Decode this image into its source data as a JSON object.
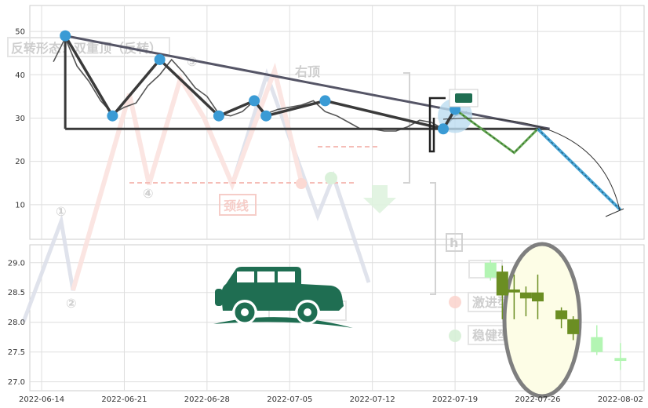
{
  "chart_data": [
    {
      "type": "line",
      "panel": "top",
      "ylim": [
        2,
        56
      ],
      "yticks": [
        10,
        20,
        30,
        40,
        50
      ],
      "colors": {
        "price": "#555555",
        "pattern": "#3a3a3a",
        "pivot": "#3a9bd5",
        "trend": "#555566",
        "projection_up": "#66aa55",
        "projection_down": "#4aa8d8"
      },
      "price_series": [
        [
          "2022-06-15",
          43.0
        ],
        [
          "2022-06-16",
          48.5
        ],
        [
          "2022-06-17",
          42.0
        ],
        [
          "2022-06-18",
          38.5
        ],
        [
          "2022-06-19",
          34.0
        ],
        [
          "2022-06-20",
          31.0
        ],
        [
          "2022-06-21",
          32.5
        ],
        [
          "2022-06-22",
          33.5
        ],
        [
          "2022-06-23",
          37.5
        ],
        [
          "2022-06-24",
          40.0
        ],
        [
          "2022-06-25",
          43.5
        ],
        [
          "2022-06-26",
          40.5
        ],
        [
          "2022-06-27",
          37.0
        ],
        [
          "2022-06-28",
          35.0
        ],
        [
          "2022-06-29",
          31.0
        ],
        [
          "2022-06-30",
          30.5
        ],
        [
          "2022-07-01",
          31.5
        ],
        [
          "2022-07-02",
          34.0
        ],
        [
          "2022-07-03",
          31.0
        ],
        [
          "2022-07-04",
          32.0
        ],
        [
          "2022-07-05",
          32.5
        ],
        [
          "2022-07-06",
          33.0
        ],
        [
          "2022-07-07",
          34.0
        ],
        [
          "2022-07-08",
          31.5
        ],
        [
          "2022-07-09",
          30.5
        ],
        [
          "2022-07-10",
          29.0
        ],
        [
          "2022-07-11",
          27.5
        ],
        [
          "2022-07-12",
          27.5
        ],
        [
          "2022-07-13",
          27.0
        ],
        [
          "2022-07-14",
          27.0
        ],
        [
          "2022-07-15",
          28.0
        ],
        [
          "2022-07-16",
          29.5
        ],
        [
          "2022-07-17",
          29.0
        ],
        [
          "2022-07-18",
          27.5
        ],
        [
          "2022-07-19",
          30.5
        ],
        [
          "2022-07-20",
          31.5
        ]
      ],
      "pattern_points": [
        [
          "2022-06-16",
          49.0
        ],
        [
          "2022-06-20",
          30.5
        ],
        [
          "2022-06-24",
          43.5
        ],
        [
          "2022-06-29",
          30.5
        ],
        [
          "2022-07-02",
          34.0
        ],
        [
          "2022-07-03",
          30.5
        ],
        [
          "2022-07-08",
          34.0
        ],
        [
          "2022-07-18",
          27.5
        ],
        [
          "2022-07-19",
          32.0
        ]
      ],
      "neckline": {
        "x": [
          "2022-06-16",
          "2022-07-27"
        ],
        "y": 27.5
      },
      "trendline": [
        [
          "2022-06-16",
          49.0
        ],
        [
          "2022-07-27",
          27.5
        ]
      ],
      "projection_up": [
        [
          "2022-07-19",
          32.0
        ],
        [
          "2022-07-24",
          22.0
        ],
        [
          "2022-07-26",
          27.5
        ]
      ],
      "projection_down": [
        [
          "2022-07-26",
          27.5
        ],
        [
          "2022-08-02",
          8.8
        ]
      ]
    },
    {
      "type": "candlestick",
      "panel": "bottom",
      "ylim": [
        26.85,
        29.3
      ],
      "yticks": [
        27.0,
        27.5,
        28.0,
        28.5,
        29.0
      ],
      "colors": {
        "bear": "#6b8e23",
        "bull": "#b3f5b3",
        "highlight": "#fdfde6",
        "highlight_border": "#808080"
      },
      "candles": [
        {
          "date": "2022-07-22",
          "open": 28.75,
          "close": 29.0,
          "high": 29.05,
          "low": 28.7,
          "bull": true
        },
        {
          "date": "2022-07-23",
          "open": 28.85,
          "close": 28.45,
          "high": 28.95,
          "low": 28.05,
          "bull": false
        },
        {
          "date": "2022-07-24",
          "open": 28.55,
          "close": 28.5,
          "high": 28.8,
          "low": 28.05,
          "bull": false
        },
        {
          "date": "2022-07-25",
          "open": 28.5,
          "close": 28.4,
          "high": 28.6,
          "low": 28.1,
          "bull": false
        },
        {
          "date": "2022-07-26",
          "open": 28.5,
          "close": 28.35,
          "high": 28.8,
          "low": 28.05,
          "bull": false
        },
        {
          "date": "2022-07-28",
          "open": 28.2,
          "close": 28.05,
          "high": 28.25,
          "low": 27.9,
          "bull": false
        },
        {
          "date": "2022-07-29",
          "open": 28.05,
          "close": 27.8,
          "high": 28.1,
          "low": 27.7,
          "bull": false
        },
        {
          "date": "2022-07-31",
          "open": 27.5,
          "close": 27.75,
          "high": 27.95,
          "low": 27.45,
          "bull": true
        },
        {
          "date": "2022-08-02",
          "open": 27.35,
          "close": 27.4,
          "high": 27.65,
          "low": 27.2,
          "bull": true
        }
      ]
    }
  ],
  "x_axis": {
    "start": "2022-06-13",
    "end": "2022-08-04",
    "ticks": [
      "2022-06-14",
      "2022-06-21",
      "2022-06-28",
      "2022-07-05",
      "2022-07-12",
      "2022-07-19",
      "2022-07-26",
      "2022-08-02"
    ]
  },
  "watermark": {
    "title": "反转形态：双重顶（反转）",
    "right_top": "右顶",
    "neckline": "颈线",
    "aggressive_sell": "激进型卖点",
    "conservative_sell": "稳健型卖点",
    "numbers": [
      "①",
      "②",
      "④",
      "⑤"
    ]
  },
  "logo": {
    "name": "jeep-logo",
    "color": "#1f6e52"
  }
}
